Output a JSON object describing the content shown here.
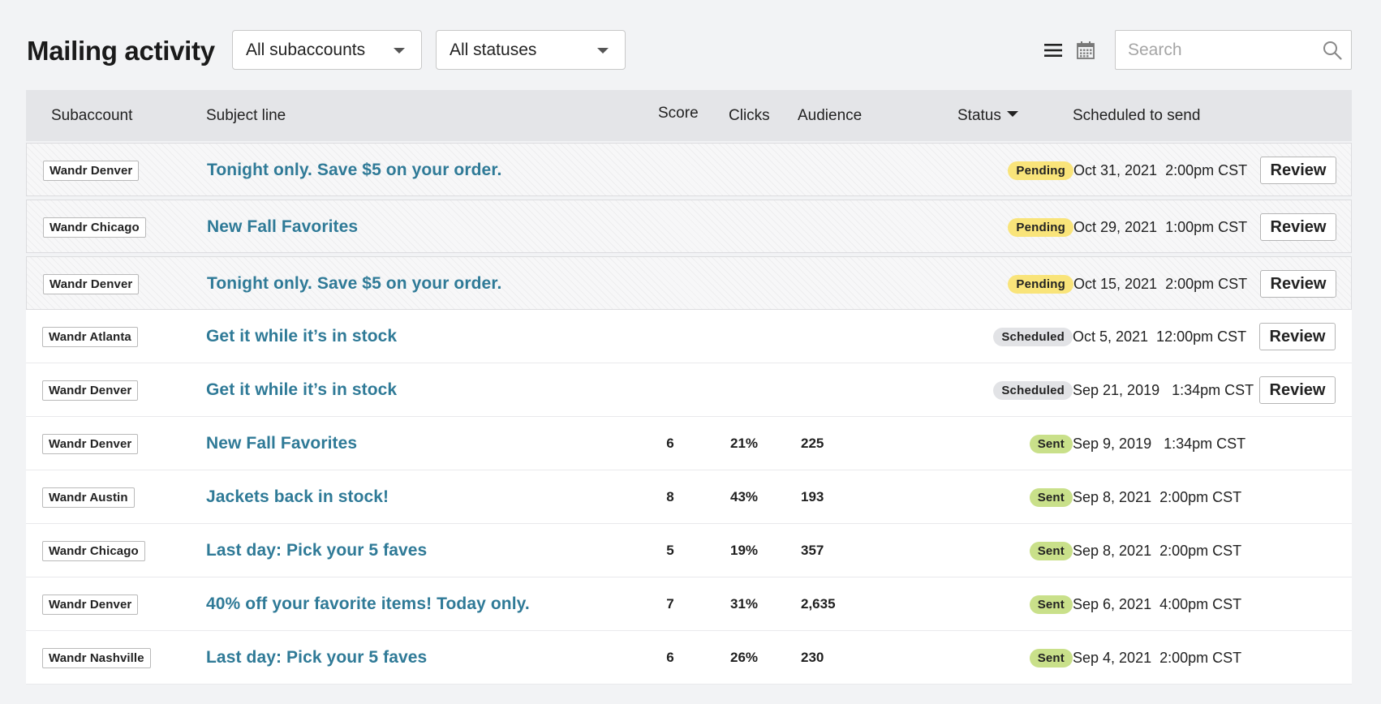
{
  "header": {
    "title": "Mailing activity",
    "subaccount_filter": "All subaccounts",
    "status_filter": "All statuses",
    "search_placeholder": "Search"
  },
  "icons": {
    "list_view": "list-icon",
    "calendar_view": "calendar-icon",
    "search": "search-icon"
  },
  "colors": {
    "link": "#2f7a97",
    "pending": "#f9e47a",
    "scheduled": "#e2e3e6",
    "sent": "#c9e08a"
  },
  "table": {
    "columns": {
      "subaccount": "Subaccount",
      "subject": "Subject line",
      "score": "Score",
      "clicks": "Clicks",
      "audience": "Audience",
      "status": "Status",
      "scheduled": "Scheduled to send"
    },
    "review_label": "Review",
    "rows": [
      {
        "subaccount": "Wandr Denver",
        "subject": "Tonight only. Save $5 on your order.",
        "score": "",
        "clicks": "",
        "audience": "",
        "status": "Pending",
        "status_type": "pending",
        "scheduled": "Oct 31, 2021  2:00pm CST",
        "review": true
      },
      {
        "subaccount": "Wandr Chicago",
        "subject": "New Fall Favorites",
        "score": "",
        "clicks": "",
        "audience": "",
        "status": "Pending",
        "status_type": "pending",
        "scheduled": "Oct 29, 2021  1:00pm CST",
        "review": true
      },
      {
        "subaccount": "Wandr Denver",
        "subject": "Tonight only. Save $5 on your order.",
        "score": "",
        "clicks": "",
        "audience": "",
        "status": "Pending",
        "status_type": "pending",
        "scheduled": "Oct 15, 2021  2:00pm CST",
        "review": true
      },
      {
        "subaccount": "Wandr Atlanta",
        "subject": "Get it while it’s in stock",
        "score": "",
        "clicks": "",
        "audience": "",
        "status": "Scheduled",
        "status_type": "scheduled",
        "scheduled": "Oct 5, 2021  12:00pm CST",
        "review": true
      },
      {
        "subaccount": "Wandr Denver",
        "subject": "Get it while it’s in stock",
        "score": "",
        "clicks": "",
        "audience": "",
        "status": "Scheduled",
        "status_type": "scheduled",
        "scheduled": "Sep 21, 2019   1:34pm CST",
        "review": true
      },
      {
        "subaccount": "Wandr Denver",
        "subject": "New Fall Favorites",
        "score": "6",
        "clicks": "21%",
        "audience": "225",
        "status": "Sent",
        "status_type": "sent",
        "scheduled": "Sep 9, 2019   1:34pm CST",
        "review": false
      },
      {
        "subaccount": "Wandr Austin",
        "subject": "Jackets back in stock!",
        "score": "8",
        "clicks": "43%",
        "audience": "193",
        "status": "Sent",
        "status_type": "sent",
        "scheduled": "Sep 8, 2021  2:00pm CST",
        "review": false
      },
      {
        "subaccount": "Wandr Chicago",
        "subject": "Last day: Pick your 5 faves",
        "score": "5",
        "clicks": "19%",
        "audience": "357",
        "status": "Sent",
        "status_type": "sent",
        "scheduled": "Sep 8, 2021  2:00pm CST",
        "review": false
      },
      {
        "subaccount": "Wandr Denver",
        "subject": "40% off your favorite items! Today only.",
        "score": "7",
        "clicks": "31%",
        "audience": "2,635",
        "status": "Sent",
        "status_type": "sent",
        "scheduled": "Sep 6, 2021  4:00pm CST",
        "review": false
      },
      {
        "subaccount": "Wandr Nashville",
        "subject": "Last day: Pick your 5 faves",
        "score": "6",
        "clicks": "26%",
        "audience": "230",
        "status": "Sent",
        "status_type": "sent",
        "scheduled": "Sep 4, 2021  2:00pm CST",
        "review": false
      }
    ]
  }
}
